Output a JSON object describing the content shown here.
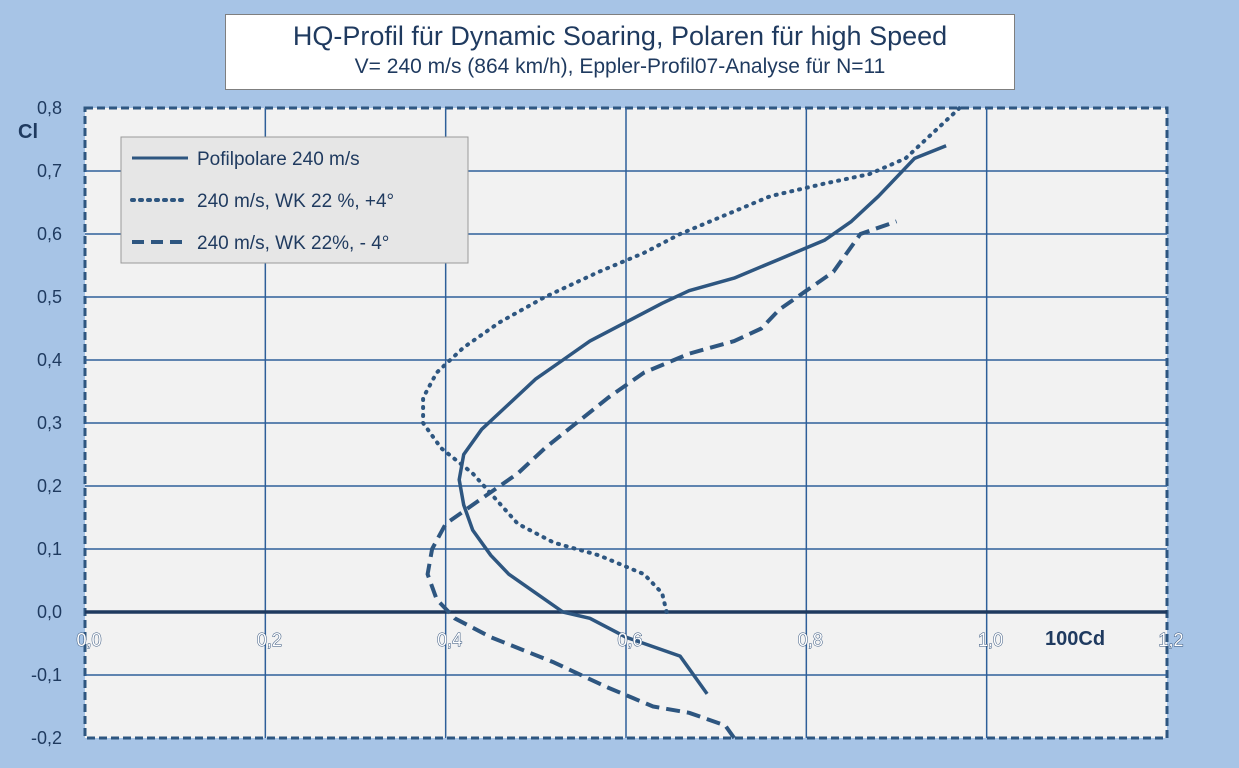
{
  "chart_data": {
    "type": "line",
    "title": "HQ-Profil für Dynamic Soaring, Polaren für high Speed",
    "subtitle": "V= 240 m/s (864 km/h), Eppler-Profil07-Analyse für N=11",
    "xlabel": "100Cd",
    "ylabel": "Cl",
    "xlim": [
      0.0,
      1.2
    ],
    "ylim": [
      -0.2,
      0.8
    ],
    "x_ticks": [
      "0,0",
      "0,2",
      "0,4",
      "0,6",
      "0,8",
      "1,0",
      "1,2"
    ],
    "y_ticks": [
      "0,8",
      "0,7",
      "0,6",
      "0,5",
      "0,4",
      "0,3",
      "0,2",
      "0,1",
      "0,0",
      "-0,1",
      "-0,2"
    ],
    "grid": true,
    "legend_position": "top-left",
    "series": [
      {
        "name": "Pofilpolare 240 m/s",
        "style": "solid",
        "color": "#2e5680",
        "points": [
          [
            0.69,
            -0.13
          ],
          [
            0.67,
            -0.09
          ],
          [
            0.66,
            -0.07
          ],
          [
            0.62,
            -0.05
          ],
          [
            0.6,
            -0.04
          ],
          [
            0.56,
            -0.01
          ],
          [
            0.53,
            0.0
          ],
          [
            0.5,
            0.03
          ],
          [
            0.47,
            0.06
          ],
          [
            0.45,
            0.09
          ],
          [
            0.43,
            0.13
          ],
          [
            0.42,
            0.17
          ],
          [
            0.415,
            0.21
          ],
          [
            0.42,
            0.25
          ],
          [
            0.44,
            0.29
          ],
          [
            0.47,
            0.33
          ],
          [
            0.5,
            0.37
          ],
          [
            0.53,
            0.4
          ],
          [
            0.56,
            0.43
          ],
          [
            0.6,
            0.46
          ],
          [
            0.64,
            0.49
          ],
          [
            0.67,
            0.51
          ],
          [
            0.72,
            0.53
          ],
          [
            0.77,
            0.56
          ],
          [
            0.82,
            0.59
          ],
          [
            0.85,
            0.62
          ],
          [
            0.88,
            0.66
          ],
          [
            0.9,
            0.69
          ],
          [
            0.92,
            0.72
          ],
          [
            0.955,
            0.74
          ]
        ]
      },
      {
        "name": "240 m/s, WK 22 %, +4°",
        "style": "dotted",
        "color": "#2e5680",
        "points": [
          [
            0.645,
            0.0
          ],
          [
            0.64,
            0.03
          ],
          [
            0.62,
            0.06
          ],
          [
            0.57,
            0.09
          ],
          [
            0.52,
            0.11
          ],
          [
            0.48,
            0.14
          ],
          [
            0.455,
            0.18
          ],
          [
            0.43,
            0.22
          ],
          [
            0.395,
            0.26
          ],
          [
            0.375,
            0.3
          ],
          [
            0.375,
            0.34
          ],
          [
            0.39,
            0.38
          ],
          [
            0.42,
            0.42
          ],
          [
            0.46,
            0.46
          ],
          [
            0.51,
            0.5
          ],
          [
            0.57,
            0.54
          ],
          [
            0.62,
            0.57
          ],
          [
            0.66,
            0.6
          ],
          [
            0.71,
            0.63
          ],
          [
            0.76,
            0.66
          ],
          [
            0.82,
            0.68
          ],
          [
            0.87,
            0.695
          ],
          [
            0.91,
            0.72
          ],
          [
            0.94,
            0.76
          ],
          [
            0.97,
            0.8
          ]
        ]
      },
      {
        "name": "240 m/s, WK 22%, - 4°",
        "style": "dashed",
        "color": "#2e5680",
        "points": [
          [
            0.72,
            -0.2
          ],
          [
            0.71,
            -0.18
          ],
          [
            0.67,
            -0.16
          ],
          [
            0.63,
            -0.15
          ],
          [
            0.58,
            -0.12
          ],
          [
            0.52,
            -0.08
          ],
          [
            0.45,
            -0.04
          ],
          [
            0.41,
            -0.01
          ],
          [
            0.39,
            0.02
          ],
          [
            0.38,
            0.06
          ],
          [
            0.385,
            0.1
          ],
          [
            0.4,
            0.14
          ],
          [
            0.44,
            0.18
          ],
          [
            0.48,
            0.22
          ],
          [
            0.51,
            0.26
          ],
          [
            0.545,
            0.3
          ],
          [
            0.58,
            0.34
          ],
          [
            0.62,
            0.38
          ],
          [
            0.67,
            0.41
          ],
          [
            0.72,
            0.43
          ],
          [
            0.75,
            0.45
          ],
          [
            0.77,
            0.48
          ],
          [
            0.8,
            0.51
          ],
          [
            0.83,
            0.54
          ],
          [
            0.85,
            0.58
          ],
          [
            0.86,
            0.6
          ],
          [
            0.9,
            0.62
          ]
        ]
      }
    ]
  }
}
